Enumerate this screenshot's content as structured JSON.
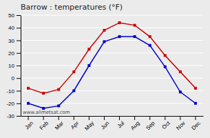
{
  "chart_data": {
    "type": "line",
    "title": "Barrow : temperatures (°F)",
    "categories": [
      "Jan",
      "Feb",
      "Mar",
      "Apr",
      "May",
      "Jun",
      "Jul",
      "Aug",
      "Sep",
      "Oct",
      "Nov",
      "Dec"
    ],
    "series": [
      {
        "color": "#cc0000",
        "marker": "square",
        "values": [
          -8,
          -12,
          -9,
          5,
          23,
          38,
          44,
          42,
          33,
          18,
          5,
          -8
        ]
      },
      {
        "color": "#0000cc",
        "marker": "square",
        "values": [
          -20,
          -24,
          -22,
          -10,
          10,
          29,
          33,
          33,
          26,
          9,
          -11,
          -20
        ]
      }
    ],
    "ylim": [
      -30,
      50
    ],
    "yticks": [
      -30,
      -20,
      -10,
      0,
      10,
      20,
      30,
      40,
      50
    ],
    "grid": true,
    "annotations": [
      "www.allmetsat.com"
    ]
  }
}
